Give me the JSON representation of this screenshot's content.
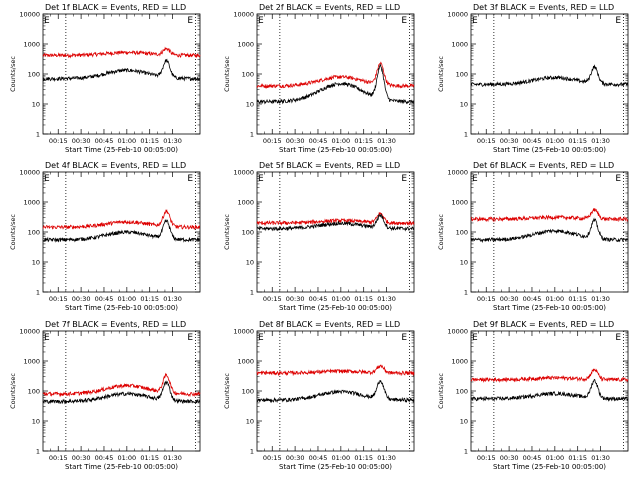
{
  "chart_data": [
    {
      "type": "line",
      "title": "Det 1f BLACK = Events, RED = LLD",
      "xlabel": "Start Time (25-Feb-10 00:05:00)",
      "ylabel": "Counts/sec",
      "yscale": "log",
      "ylim": [
        1,
        10000
      ],
      "yticks": [
        "1",
        "10",
        "100",
        "1000",
        "10000"
      ],
      "xticks": [
        "00:15",
        "00:30",
        "00:45",
        "01:00",
        "01:15",
        "01:30"
      ],
      "xlim_min": [
        0,
        103
      ],
      "markers": [
        "E",
        "E"
      ],
      "series": [
        {
          "color": "#000000",
          "base": 70,
          "bump": 1.9,
          "peak": 3.6
        },
        {
          "color": "#dd0000",
          "base": 420,
          "bump": 1.25,
          "peak": 1.6
        }
      ]
    },
    {
      "type": "line",
      "title": "Det 2f BLACK = Events, RED = LLD",
      "xlabel": "Start Time (25-Feb-10 00:05:00)",
      "ylabel": "Counts/sec",
      "yscale": "log",
      "ylim": [
        1,
        10000
      ],
      "yticks": [
        "1",
        "10",
        "100",
        "1000",
        "10000"
      ],
      "xticks": [
        "00:15",
        "00:30",
        "00:45",
        "01:00",
        "01:15",
        "01:30"
      ],
      "xlim_min": [
        0,
        103
      ],
      "markers": [
        "E",
        "E"
      ],
      "series": [
        {
          "color": "#000000",
          "base": 12,
          "bump": 4.0,
          "peak": 12.0
        },
        {
          "color": "#dd0000",
          "base": 40,
          "bump": 2.0,
          "peak": 5.0
        }
      ]
    },
    {
      "type": "line",
      "title": "Det 3f BLACK = Events, RED = LLD",
      "xlabel": "Start Time (25-Feb-10 00:05:00)",
      "ylabel": "Counts/sec",
      "yscale": "log",
      "ylim": [
        1,
        10000
      ],
      "yticks": [
        "1",
        "10",
        "100",
        "1000",
        "10000"
      ],
      "xticks": [
        "00:15",
        "00:30",
        "00:45",
        "01:00",
        "01:15",
        "01:30"
      ],
      "xlim_min": [
        0,
        103
      ],
      "markers": [
        "E",
        "E"
      ],
      "series": [
        {
          "color": "#000000",
          "base": 45,
          "bump": 1.7,
          "peak": 3.5
        }
      ]
    },
    {
      "type": "line",
      "title": "Det 4f BLACK = Events, RED = LLD",
      "xlabel": "Start Time (25-Feb-10 00:05:00)",
      "ylabel": "Counts/sec",
      "yscale": "log",
      "ylim": [
        1,
        10000
      ],
      "yticks": [
        "1",
        "10",
        "100",
        "1000",
        "10000"
      ],
      "xticks": [
        "00:15",
        "00:30",
        "00:45",
        "01:00",
        "01:15",
        "01:30"
      ],
      "xlim_min": [
        0,
        103
      ],
      "markers": [
        "E",
        "E"
      ],
      "series": [
        {
          "color": "#000000",
          "base": 55,
          "bump": 1.8,
          "peak": 3.8
        },
        {
          "color": "#dd0000",
          "base": 145,
          "bump": 1.5,
          "peak": 3.2
        }
      ]
    },
    {
      "type": "line",
      "title": "Det 5f BLACK = Events, RED = LLD",
      "xlabel": "Start Time (25-Feb-10 00:05:00)",
      "ylabel": "Counts/sec",
      "yscale": "log",
      "ylim": [
        1,
        10000
      ],
      "yticks": [
        "1",
        "10",
        "100",
        "1000",
        "10000"
      ],
      "xticks": [
        "00:15",
        "00:30",
        "00:45",
        "01:00",
        "01:15",
        "01:30"
      ],
      "xlim_min": [
        0,
        103
      ],
      "markers": [
        "E",
        "E"
      ],
      "series": [
        {
          "color": "#000000",
          "base": 130,
          "bump": 1.5,
          "peak": 2.6
        },
        {
          "color": "#dd0000",
          "base": 200,
          "bump": 1.2,
          "peak": 2.0
        }
      ]
    },
    {
      "type": "line",
      "title": "Det 6f BLACK = Events, RED = LLD",
      "xlabel": "Start Time (25-Feb-10 00:05:00)",
      "ylabel": "Counts/sec",
      "yscale": "log",
      "ylim": [
        1,
        10000
      ],
      "yticks": [
        "1",
        "10",
        "100",
        "1000",
        "10000"
      ],
      "xticks": [
        "00:15",
        "00:30",
        "00:45",
        "01:00",
        "01:15",
        "01:30"
      ],
      "xlim_min": [
        0,
        103
      ],
      "markers": [
        "E",
        "E"
      ],
      "series": [
        {
          "color": "#000000",
          "base": 55,
          "bump": 2.0,
          "peak": 4.0
        },
        {
          "color": "#dd0000",
          "base": 270,
          "bump": 1.15,
          "peak": 2.0
        }
      ]
    },
    {
      "type": "line",
      "title": "Det 7f BLACK = Events, RED = LLD",
      "xlabel": "Start Time (25-Feb-10 00:05:00)",
      "ylabel": "Counts/sec",
      "yscale": "log",
      "ylim": [
        1,
        10000
      ],
      "yticks": [
        "1",
        "10",
        "100",
        "1000",
        "10000"
      ],
      "xticks": [
        "00:15",
        "00:30",
        "00:45",
        "01:00",
        "01:15",
        "01:30"
      ],
      "xlim_min": [
        0,
        103
      ],
      "markers": [
        "E",
        "E"
      ],
      "series": [
        {
          "color": "#000000",
          "base": 45,
          "bump": 1.8,
          "peak": 4.0
        },
        {
          "color": "#dd0000",
          "base": 80,
          "bump": 1.9,
          "peak": 3.8
        }
      ]
    },
    {
      "type": "line",
      "title": "Det 8f BLACK = Events, RED = LLD",
      "xlabel": "Start Time (25-Feb-10 00:05:00)",
      "ylabel": "Counts/sec",
      "yscale": "log",
      "ylim": [
        1,
        10000
      ],
      "yticks": [
        "1",
        "10",
        "100",
        "1000",
        "10000"
      ],
      "xticks": [
        "00:15",
        "00:30",
        "00:45",
        "01:00",
        "01:15",
        "01:30"
      ],
      "xlim_min": [
        0,
        103
      ],
      "markers": [
        "E",
        "E"
      ],
      "series": [
        {
          "color": "#000000",
          "base": 50,
          "bump": 1.9,
          "peak": 4.0
        },
        {
          "color": "#dd0000",
          "base": 400,
          "bump": 1.15,
          "peak": 1.7
        }
      ]
    },
    {
      "type": "line",
      "title": "Det 9f BLACK = Events, RED = LLD",
      "xlabel": "Start Time (25-Feb-10 00:05:00)",
      "ylabel": "Counts/sec",
      "yscale": "log",
      "ylim": [
        1,
        10000
      ],
      "yticks": [
        "1",
        "10",
        "100",
        "1000",
        "10000"
      ],
      "xticks": [
        "00:15",
        "00:30",
        "00:45",
        "01:00",
        "01:15",
        "01:30"
      ],
      "xlim_min": [
        0,
        103
      ],
      "markers": [
        "E",
        "E"
      ],
      "series": [
        {
          "color": "#000000",
          "base": 55,
          "bump": 1.5,
          "peak": 3.8
        },
        {
          "color": "#dd0000",
          "base": 240,
          "bump": 1.15,
          "peak": 2.1
        }
      ]
    }
  ]
}
